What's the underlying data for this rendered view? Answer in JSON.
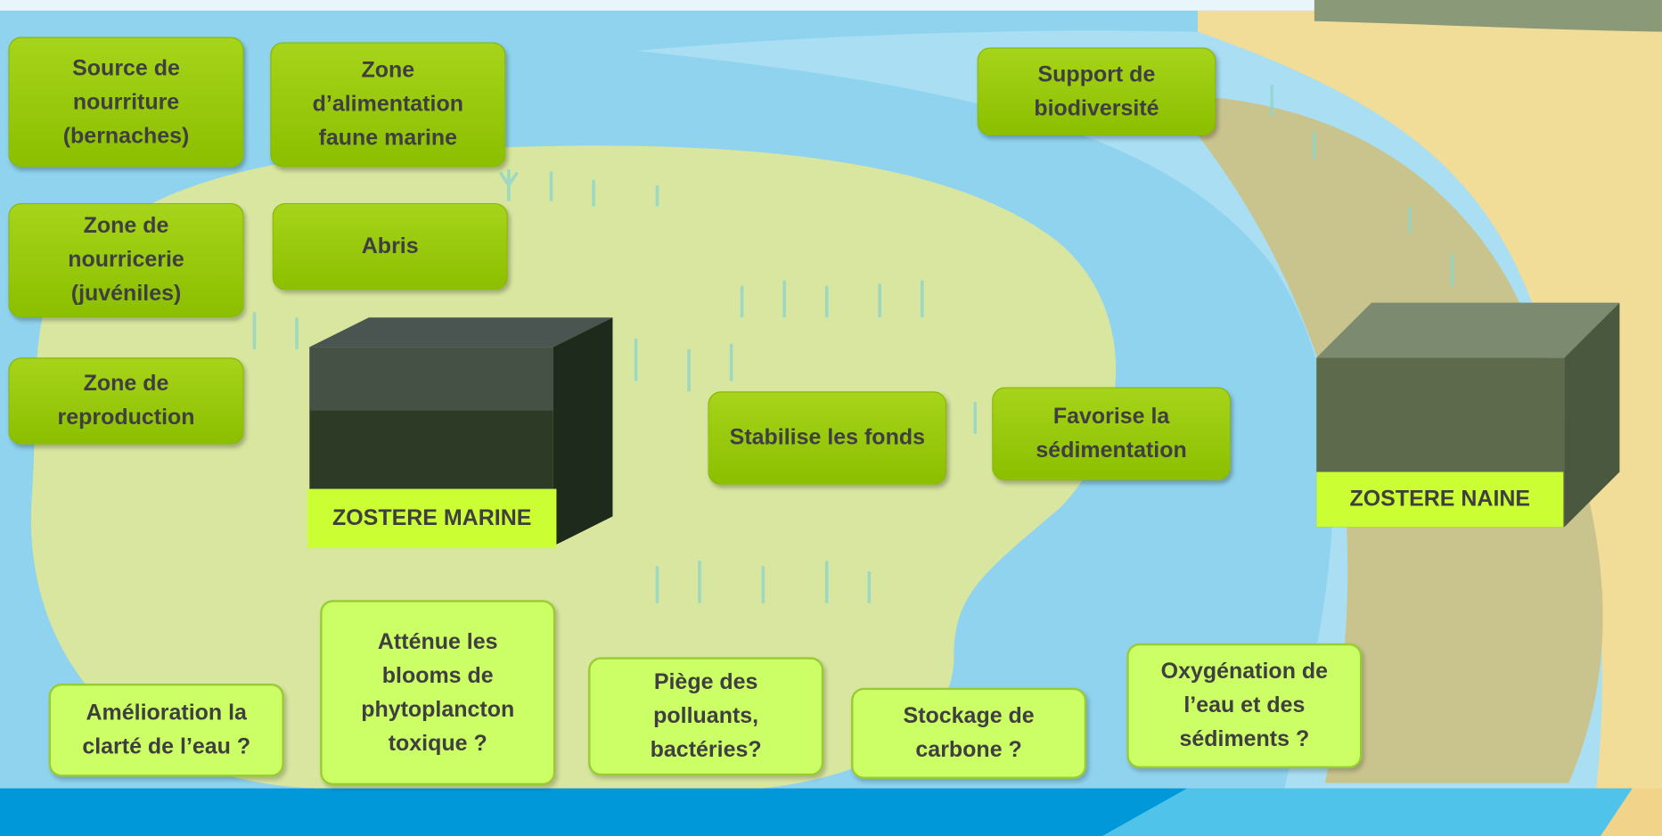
{
  "functions": [
    "Source de nourriture (bernaches)",
    "Zone d’alimentation faune marine",
    "Zone de nourricerie (juvéniles)",
    "Abris",
    "Zone de reproduction",
    "Support de biodiversité",
    "Stabilise les fonds",
    "Favorise la sédimentation"
  ],
  "questions": [
    "Amélioration la clarté de l’eau ?",
    "Atténue les blooms de phytoplancton toxique ?",
    "Piège des polluants, bactéries?",
    "Stockage de carbone ?",
    "Oxygénation de l’eau et des sédiments ?"
  ],
  "habitats": [
    "ZOSTERE MARINE",
    "ZOSTERE NAINE"
  ]
}
